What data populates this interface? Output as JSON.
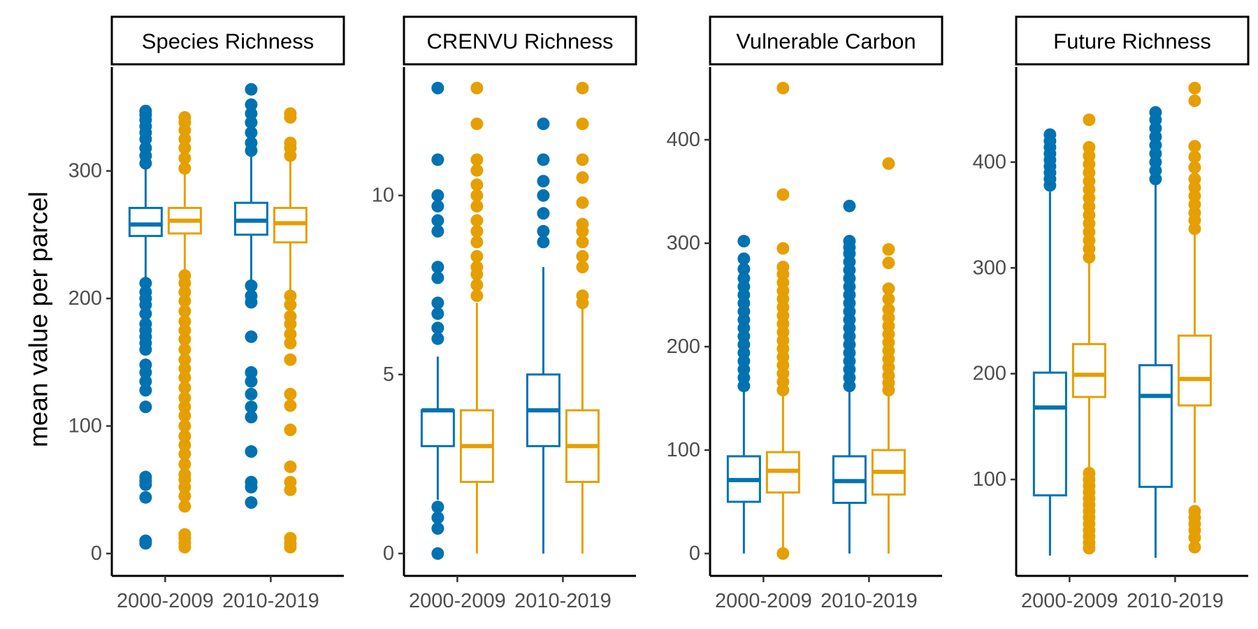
{
  "chart_data": {
    "type": "boxplot",
    "ylabel": "mean value per parcel",
    "x": [
      "2000-2009",
      "2010-2019"
    ],
    "legend": "none",
    "grid": false,
    "series_colors": [
      "#0072b2",
      "#e69f00"
    ],
    "panels": [
      {
        "title": "Species Richness",
        "ylim": [
          0,
          365
        ],
        "yticks": [
          0,
          100,
          200,
          300
        ],
        "boxes": [
          {
            "period": "2000-2009",
            "color": "#0072b2",
            "q1": 249,
            "median": 258,
            "q3": 271,
            "whisker_low": 216,
            "whisker_high": 304,
            "outliers": [
              8,
              10,
              44,
              54,
              57,
              60,
              115,
              128,
              135,
              142,
              148,
              160,
              165,
              170,
              175,
              180,
              188,
              195,
              200,
              205,
              212,
              306,
              312,
              318,
              325,
              330,
              335,
              340,
              344,
              347
            ]
          },
          {
            "period": "2000-2009",
            "color": "#e69f00",
            "q1": 251,
            "median": 261,
            "q3": 271,
            "whisker_low": 222,
            "whisker_high": 298,
            "outliers": [
              5,
              8,
              12,
              15,
              37,
              45,
              52,
              58,
              62,
              70,
              78,
              85,
              92,
              100,
              108,
              115,
              122,
              130,
              138,
              145,
              152,
              160,
              168,
              175,
              182,
              190,
              198,
              205,
              212,
              218,
              302,
              310,
              318,
              325,
              332,
              338,
              342
            ]
          },
          {
            "period": "2010-2019",
            "color": "#0072b2",
            "q1": 250,
            "median": 261,
            "q3": 275,
            "whisker_low": 213,
            "whisker_high": 312,
            "outliers": [
              40,
              52,
              56,
              80,
              107,
              115,
              125,
              135,
              142,
              170,
              197,
              202,
              210,
              316,
              322,
              330,
              338,
              345,
              352,
              364
            ]
          },
          {
            "period": "2010-2019",
            "color": "#e69f00",
            "q1": 244,
            "median": 259,
            "q3": 271,
            "whisker_low": 205,
            "whisker_high": 308,
            "outliers": [
              5,
              8,
              12,
              50,
              56,
              68,
              97,
              116,
              125,
              152,
              165,
              172,
              180,
              186,
              195,
              202,
              312,
              318,
              322,
              342,
              345
            ]
          }
        ]
      },
      {
        "title": "CRENVU Richness",
        "ylim": [
          0,
          13
        ],
        "yticks": [
          0,
          5,
          10
        ],
        "boxes": [
          {
            "period": "2000-2009",
            "color": "#0072b2",
            "q1": 3,
            "median": 4,
            "q3": 4,
            "whisker_low": 1.5,
            "whisker_high": 5.5,
            "outliers": [
              0,
              0.7,
              1,
              1.3,
              6,
              6.3,
              6.7,
              7,
              7.7,
              8,
              9,
              9.3,
              9.7,
              10,
              11,
              13
            ]
          },
          {
            "period": "2000-2009",
            "color": "#e69f00",
            "q1": 2,
            "median": 3,
            "q3": 4,
            "whisker_low": 0,
            "whisker_high": 7,
            "outliers": [
              7.2,
              7.5,
              7.8,
              8,
              8.3,
              8.7,
              9,
              9.3,
              9.7,
              10,
              10.3,
              10.7,
              11,
              12,
              13
            ]
          },
          {
            "period": "2010-2019",
            "color": "#0072b2",
            "q1": 3,
            "median": 4,
            "q3": 5,
            "whisker_low": 0,
            "whisker_high": 8,
            "outliers": [
              8.7,
              9,
              9.5,
              10,
              10.4,
              11,
              12
            ]
          },
          {
            "period": "2010-2019",
            "color": "#e69f00",
            "q1": 2,
            "median": 3,
            "q3": 4,
            "whisker_low": 0,
            "whisker_high": 7,
            "outliers": [
              7,
              7.2,
              8,
              8.3,
              8.7,
              9,
              9.2,
              9.8,
              10.5,
              11,
              12,
              13
            ]
          }
        ]
      },
      {
        "title": "Vulnerable Carbon",
        "ylim": [
          0,
          450
        ],
        "yticks": [
          0,
          100,
          200,
          300,
          400
        ],
        "boxes": [
          {
            "period": "2000-2009",
            "color": "#0072b2",
            "q1": 50,
            "median": 71,
            "q3": 94,
            "whisker_low": 0,
            "whisker_high": 158,
            "outliers": [
              162,
              170,
              178,
              186,
              194,
              202,
              210,
              218,
              226,
              234,
              242,
              250,
              258,
              266,
              275,
              285,
              302
            ]
          },
          {
            "period": "2000-2009",
            "color": "#e69f00",
            "q1": 59,
            "median": 80,
            "q3": 98,
            "whisker_low": 0,
            "whisker_high": 155,
            "outliers": [
              0,
              158,
              166,
              174,
              182,
              190,
              198,
              206,
              214,
              222,
              230,
              238,
              246,
              254,
              262,
              270,
              277,
              295,
              347,
              450
            ]
          },
          {
            "period": "2010-2019",
            "color": "#0072b2",
            "q1": 49,
            "median": 70,
            "q3": 94,
            "whisker_low": 0,
            "whisker_high": 158,
            "outliers": [
              162,
              170,
              178,
              186,
              194,
              202,
              210,
              218,
              226,
              234,
              242,
              250,
              258,
              266,
              274,
              282,
              290,
              296,
              302,
              336
            ]
          },
          {
            "period": "2010-2019",
            "color": "#e69f00",
            "q1": 57,
            "median": 79,
            "q3": 100,
            "whisker_low": 0,
            "whisker_high": 155,
            "outliers": [
              158,
              165,
              172,
              180,
              188,
              196,
              204,
              212,
              220,
              228,
              236,
              246,
              256,
              281,
              294,
              377
            ]
          }
        ]
      },
      {
        "title": "Future Richness",
        "ylim": [
          30,
          470
        ],
        "yticks": [
          100,
          200,
          300,
          400
        ],
        "boxes": [
          {
            "period": "2000-2009",
            "color": "#0072b2",
            "q1": 85,
            "median": 168,
            "q3": 201,
            "whisker_low": 28,
            "whisker_high": 372,
            "outliers": [
              378,
              384,
              390,
              396,
              402,
              408,
              414,
              420,
              426
            ]
          },
          {
            "period": "2000-2009",
            "color": "#e69f00",
            "q1": 178,
            "median": 199,
            "q3": 228,
            "whisker_low": 110,
            "whisker_high": 305,
            "outliers": [
              35,
              40,
              46,
              52,
              58,
              64,
              70,
              76,
              82,
              88,
              94,
              100,
              106,
              310,
              318,
              326,
              334,
              342,
              350,
              358,
              366,
              374,
              382,
              390,
              398,
              406,
              414,
              440
            ]
          },
          {
            "period": "2010-2019",
            "color": "#0072b2",
            "q1": 93,
            "median": 179,
            "q3": 208,
            "whisker_low": 26,
            "whisker_high": 380,
            "outliers": [
              384,
              392,
              400,
              408,
              416,
              424,
              432,
              440,
              447
            ]
          },
          {
            "period": "2010-2019",
            "color": "#e69f00",
            "q1": 170,
            "median": 195,
            "q3": 236,
            "whisker_low": 78,
            "whisker_high": 332,
            "outliers": [
              36,
              45,
              52,
              58,
              64,
              70,
              337,
              345,
              352,
              360,
              368,
              376,
              384,
              395,
              405,
              415,
              458,
              470
            ]
          }
        ]
      }
    ]
  }
}
